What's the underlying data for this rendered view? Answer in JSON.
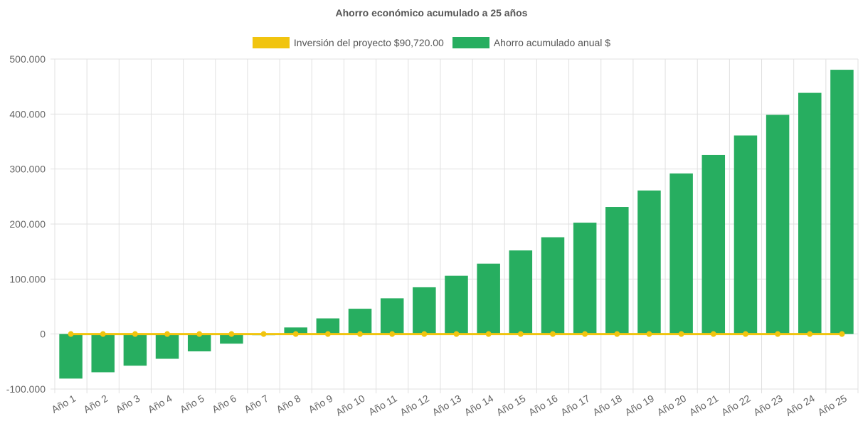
{
  "chart_data": {
    "type": "bar",
    "title": "Ahorro económico acumulado a 25 años",
    "xlabel": "",
    "ylabel": "",
    "categories": [
      "Año 1",
      "Año 2",
      "Año 3",
      "Año 4",
      "Año 5",
      "Año 6",
      "Año 7",
      "Año 8",
      "Año 9",
      "Año 10",
      "Año 11",
      "Año 12",
      "Año 13",
      "Año 14",
      "Año 15",
      "Año 16",
      "Año 17",
      "Año 18",
      "Año 19",
      "Año 20",
      "Año 21",
      "Año 22",
      "Año 23",
      "Año 24",
      "Año 25"
    ],
    "ylim": [
      -100000,
      500000
    ],
    "yticks": [
      500000,
      400000,
      300000,
      200000,
      100000,
      0,
      -100000
    ],
    "ytick_labels": [
      "500.000",
      "400.000",
      "300.000",
      "200.000",
      "100.000",
      "0",
      "-100.000"
    ],
    "grid": true,
    "legend_position": "top",
    "series": [
      {
        "name": "Inversión del proyecto $90,720.00",
        "type": "line",
        "color": "#F1C40F",
        "values": [
          0,
          0,
          0,
          0,
          0,
          0,
          0,
          0,
          0,
          0,
          0,
          0,
          0,
          0,
          0,
          0,
          0,
          0,
          0,
          0,
          0,
          0,
          0,
          0,
          0
        ]
      },
      {
        "name": "Ahorro acumulado anual $",
        "type": "bar",
        "color": "#27AE60",
        "values": [
          -81000,
          -69500,
          -57500,
          -45000,
          -31500,
          -17500,
          -2000,
          12000,
          28500,
          46000,
          65000,
          85000,
          106000,
          128000,
          152000,
          176000,
          202500,
          231000,
          261000,
          292000,
          325500,
          361000,
          398500,
          438500,
          480500
        ]
      }
    ]
  }
}
